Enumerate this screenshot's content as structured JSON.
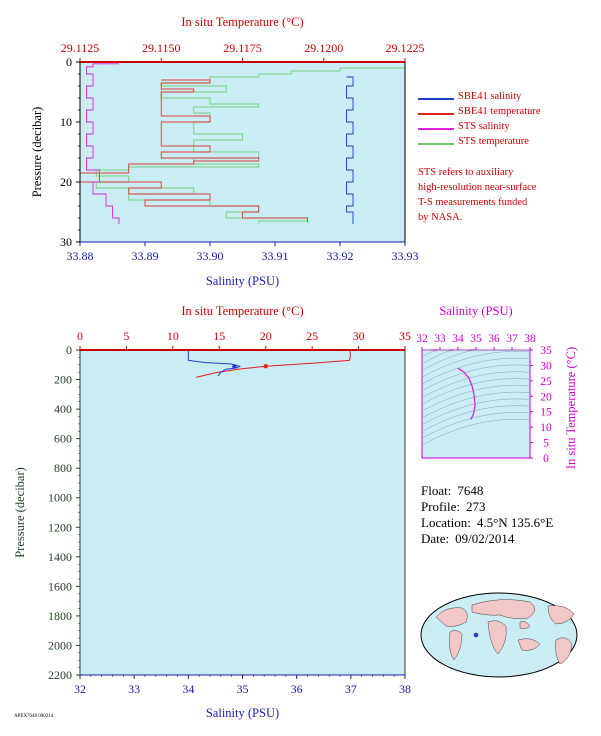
{
  "float_info": {
    "float_label": "Float:",
    "float_value": "7648",
    "profile_label": "Profile:",
    "profile_value": "273",
    "location_label": "Location:",
    "location_value": "4.5°N  135.6°E",
    "date_label": "Date:",
    "date_value": "09/02/2014"
  },
  "legend": {
    "items": [
      {
        "label": "SBE41 salinity",
        "color": "#1f3fcc"
      },
      {
        "label": "SBE41 temperature",
        "color": "#e0201a"
      },
      {
        "label": "STS salinity",
        "color": "#e020e0"
      },
      {
        "label": "STS temperature",
        "color": "#66cc66"
      }
    ],
    "note": [
      "STS refers to auxiliary",
      "high-resolution near-surface",
      "T-S measurements funded",
      "by NASA."
    ]
  },
  "footer_text": "APEX7648 090214",
  "colors": {
    "panel_bg": "#c9ecf5",
    "temp_axis": "#cc0000",
    "sal_axis": "#1a1aaa",
    "pressure_axis": "#224422",
    "ts_axis": "#cc00cc",
    "sbe_sal": "#1f3fcc",
    "sbe_temp": "#e0201a",
    "sts_sal": "#e020e0",
    "sts_temp": "#66cc66"
  },
  "chart_data": [
    {
      "type": "line",
      "id": "near-surface",
      "top_axis": {
        "label": "In situ Temperature (°C)",
        "range": [
          29.1125,
          29.1225
        ],
        "ticks": [
          "29.1125",
          "29.1150",
          "29.1175",
          "29.1200",
          "29.1225"
        ]
      },
      "bottom_axis": {
        "label": "Salinity (PSU)",
        "range": [
          33.88,
          33.93
        ],
        "ticks": [
          "33.88",
          "33.89",
          "33.90",
          "33.91",
          "33.92",
          "33.93"
        ]
      },
      "y_axis": {
        "label": "Pressure (decibar)",
        "range": [
          0,
          30
        ],
        "ticks": [
          "0",
          "10",
          "20",
          "30"
        ],
        "inverted": true
      },
      "series": [
        {
          "name": "STS temperature",
          "axis": "top",
          "points": [
            [
              29.1225,
              1
            ],
            [
              29.1205,
              1.5
            ],
            [
              29.119,
              2
            ],
            [
              29.118,
              2.5
            ],
            [
              29.1165,
              3.5
            ],
            [
              29.115,
              4
            ],
            [
              29.117,
              5
            ],
            [
              29.115,
              6
            ],
            [
              29.1165,
              7
            ],
            [
              29.118,
              7.5
            ],
            [
              29.116,
              8.5
            ],
            [
              29.1165,
              10
            ],
            [
              29.116,
              12
            ],
            [
              29.1175,
              13
            ],
            [
              29.116,
              15
            ],
            [
              29.118,
              16
            ],
            [
              29.116,
              17
            ],
            [
              29.118,
              17.5
            ],
            [
              29.114,
              18
            ],
            [
              29.113,
              19
            ],
            [
              29.114,
              20
            ],
            [
              29.113,
              21
            ],
            [
              29.116,
              22
            ],
            [
              29.114,
              23
            ],
            [
              29.1165,
              24
            ],
            [
              29.118,
              25
            ],
            [
              29.117,
              26
            ],
            [
              29.1195,
              26.5
            ],
            [
              29.118,
              27
            ]
          ]
        },
        {
          "name": "SBE41 temperature",
          "axis": "top",
          "points": [
            [
              29.115,
              3
            ],
            [
              29.1165,
              3.5
            ],
            [
              29.115,
              4.5
            ],
            [
              29.116,
              5
            ],
            [
              29.115,
              9
            ],
            [
              29.1165,
              10
            ],
            [
              29.115,
              14
            ],
            [
              29.1165,
              15
            ],
            [
              29.115,
              16
            ],
            [
              29.118,
              16.5
            ],
            [
              29.116,
              17
            ],
            [
              29.114,
              18.5
            ],
            [
              29.1125,
              20
            ],
            [
              29.115,
              21
            ],
            [
              29.114,
              22
            ],
            [
              29.1165,
              23
            ],
            [
              29.1145,
              24
            ],
            [
              29.118,
              25
            ],
            [
              29.1175,
              26
            ],
            [
              29.1195,
              26.7
            ]
          ]
        },
        {
          "name": "STS salinity",
          "axis": "bottom",
          "points": [
            [
              33.886,
              0.3
            ],
            [
              33.882,
              0.8
            ],
            [
              33.881,
              2
            ],
            [
              33.882,
              4
            ],
            [
              33.881,
              6
            ],
            [
              33.882,
              8
            ],
            [
              33.881,
              10
            ],
            [
              33.882,
              12
            ],
            [
              33.881,
              14
            ],
            [
              33.882,
              16
            ],
            [
              33.881,
              18
            ],
            [
              33.883,
              20
            ],
            [
              33.882,
              22
            ],
            [
              33.884,
              24
            ],
            [
              33.885,
              26
            ],
            [
              33.886,
              27
            ]
          ]
        },
        {
          "name": "SBE41 salinity",
          "axis": "bottom",
          "points": [
            [
              33.921,
              2.5
            ],
            [
              33.922,
              4
            ],
            [
              33.921,
              6
            ],
            [
              33.922,
              8
            ],
            [
              33.921,
              10
            ],
            [
              33.922,
              12
            ],
            [
              33.921,
              14
            ],
            [
              33.922,
              16
            ],
            [
              33.921,
              18
            ],
            [
              33.922,
              20
            ],
            [
              33.921,
              22
            ],
            [
              33.922,
              24
            ],
            [
              33.921,
              25
            ],
            [
              33.922,
              27
            ]
          ]
        }
      ]
    },
    {
      "type": "line",
      "id": "full-profile",
      "top_axis": {
        "label": "In situ Temperature (°C)",
        "range": [
          0,
          35
        ],
        "ticks": [
          "0",
          "5",
          "10",
          "15",
          "20",
          "25",
          "30",
          "35"
        ]
      },
      "bottom_axis": {
        "label": "Salinity (PSU)",
        "range": [
          32,
          38
        ],
        "ticks": [
          "32",
          "33",
          "34",
          "35",
          "36",
          "37",
          "38"
        ]
      },
      "y_axis": {
        "label": "Pressure (decibar)",
        "range": [
          0,
          2200
        ],
        "ticks": [
          "0",
          "200",
          "400",
          "600",
          "800",
          "1000",
          "1200",
          "1400",
          "1600",
          "1800",
          "2000",
          "2200"
        ],
        "inverted": true
      },
      "series": [
        {
          "name": "SBE41 temperature",
          "axis": "top",
          "points": [
            [
              29.1,
              0
            ],
            [
              29.1,
              50
            ],
            [
              29.0,
              70
            ],
            [
              25,
              90
            ],
            [
              20,
              110
            ],
            [
              17,
              130
            ],
            [
              14.5,
              155
            ],
            [
              13.5,
              170
            ],
            [
              12.5,
              185
            ]
          ]
        },
        {
          "name": "SBE41 salinity",
          "axis": "bottom",
          "points": [
            [
              34.0,
              0
            ],
            [
              34.0,
              70
            ],
            [
              34.3,
              85
            ],
            [
              34.8,
              95
            ],
            [
              34.95,
              110
            ],
            [
              34.9,
              120
            ],
            [
              34.7,
              130
            ],
            [
              34.6,
              150
            ],
            [
              34.55,
              175
            ]
          ]
        }
      ],
      "markers": [
        {
          "name": "SBE41 temperature",
          "axis": "top",
          "value": 20.0,
          "pressure": 110
        },
        {
          "name": "SBE41 salinity",
          "axis": "bottom",
          "value": 34.85,
          "pressure": 112
        }
      ]
    },
    {
      "type": "line",
      "id": "ts-diagram",
      "top_axis": {
        "label": "Salinity (PSU)",
        "range": [
          32,
          38
        ],
        "ticks": [
          "32",
          "33",
          "34",
          "35",
          "36",
          "37",
          "38"
        ]
      },
      "right_axis": {
        "label": "In situ Temperature (°C)",
        "range": [
          0,
          35
        ],
        "ticks": [
          "0",
          "5",
          "10",
          "15",
          "20",
          "25",
          "30",
          "35"
        ]
      },
      "series": [
        {
          "name": "STS salinity",
          "points": [
            [
              34.0,
              29.1
            ],
            [
              34.3,
              28
            ],
            [
              34.6,
              26
            ],
            [
              34.8,
              23
            ],
            [
              34.9,
              20
            ],
            [
              34.95,
              17
            ],
            [
              34.85,
              14
            ],
            [
              34.7,
              12.5
            ]
          ]
        }
      ]
    }
  ]
}
